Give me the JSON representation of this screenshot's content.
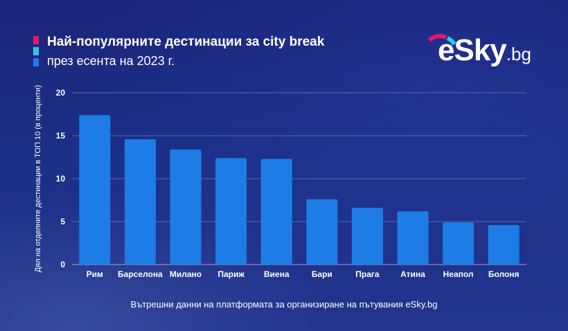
{
  "header": {
    "title": "Най-популярните дестинации за city break",
    "subtitle": "през есента на 2023 г."
  },
  "logo": {
    "main": "eSky",
    "tld": ".bg"
  },
  "source_note": "Вътрешни данни на платформата за организиране на пътувания eSky.bg",
  "colors": {
    "bar": "#1e7ce6",
    "stripe_top": "#e3166c",
    "stripe_mid": "#2ec9e0",
    "stripe_bottom": "#1e7cf0",
    "logo_arc_pink": "#e3166c",
    "logo_arc_blue": "#2ec9e0"
  },
  "chart_data": {
    "type": "bar",
    "title": "Най-популярните дестинации за city break",
    "subtitle": "през есента на 2023 г.",
    "xlabel": "",
    "ylabel": "Дял на отделните дестинации в ТОП 10 (в проценти)",
    "categories": [
      "Рим",
      "Барселона",
      "Милано",
      "Париж",
      "Виена",
      "Бари",
      "Прага",
      "Атина",
      "Неапол",
      "Болоня"
    ],
    "values": [
      17.4,
      14.6,
      13.4,
      12.4,
      12.3,
      7.6,
      6.6,
      6.2,
      4.9,
      4.6
    ],
    "ylim": [
      0,
      20
    ],
    "yticks": [
      0,
      5,
      10,
      15,
      20
    ],
    "grid": true,
    "legend": "none"
  }
}
